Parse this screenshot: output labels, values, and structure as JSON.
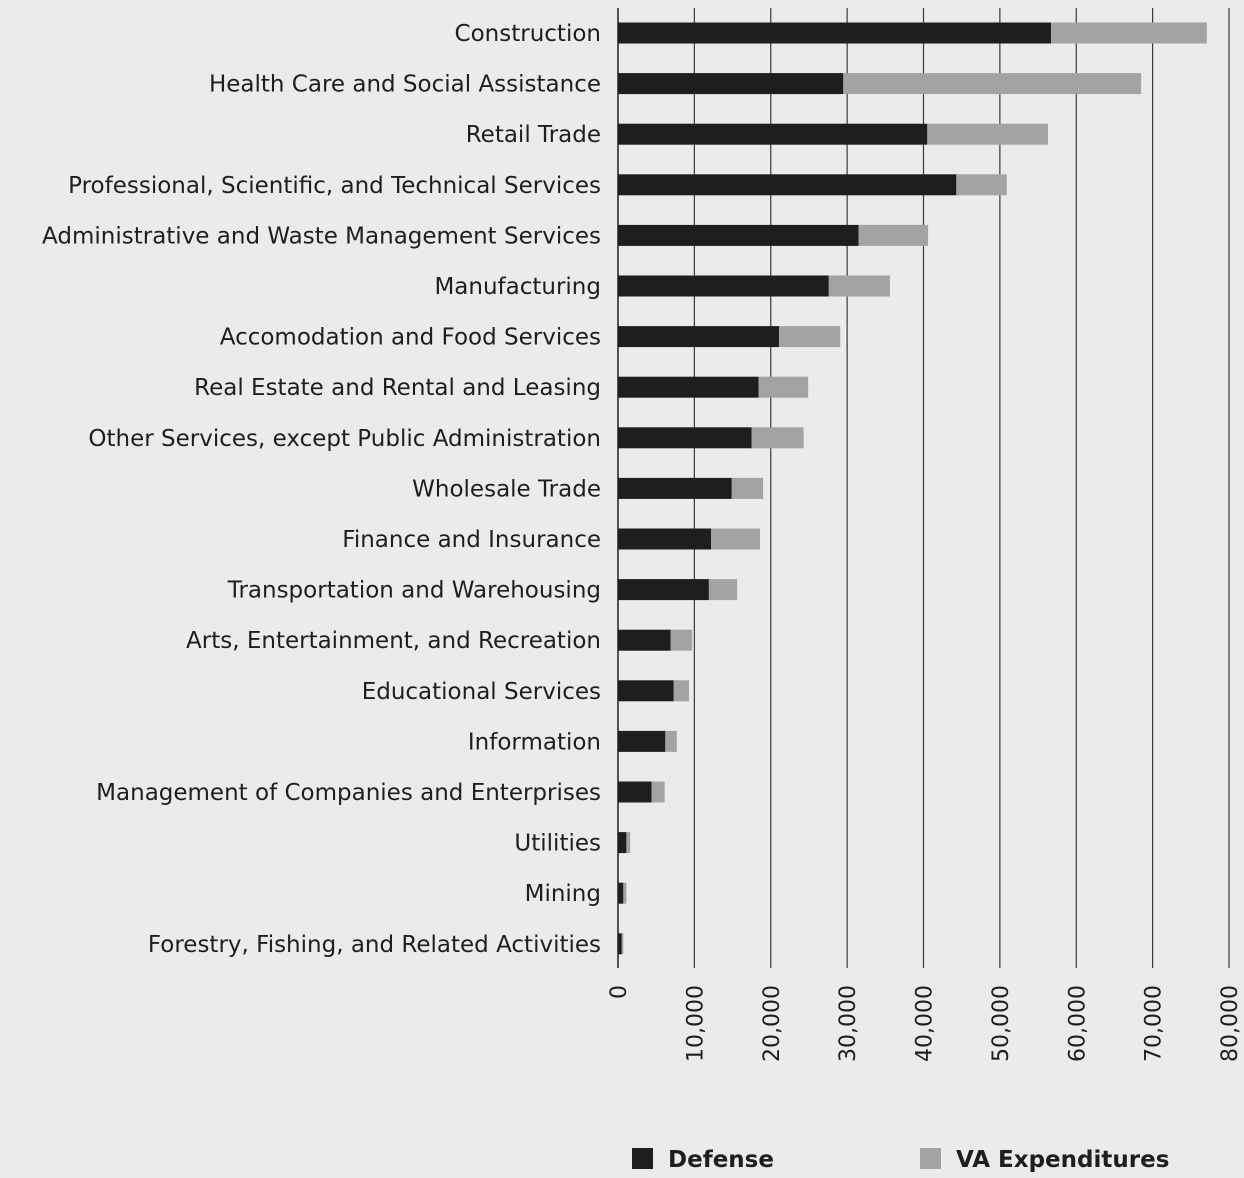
{
  "chart_data": {
    "type": "bar",
    "orientation": "horizontal",
    "stacked": true,
    "categories": [
      "Construction",
      "Health Care and Social Assistance",
      "Retail Trade",
      "Professional, Scientific, and Technical Services",
      "Administrative and Waste Management Services",
      "Manufacturing",
      "Accomodation and Food Services",
      "Real Estate and Rental and Leasing",
      "Other Services, except Public Administration",
      "Wholesale Trade",
      "Finance and Insurance",
      "Transportation and Warehousing",
      "Arts, Entertainment, and Recreation",
      "Educational Services",
      "Information",
      "Management of Companies and Enterprises",
      "Utilities",
      "Mining",
      "Forestry, Fishing, and Related Activities"
    ],
    "series": [
      {
        "name": "Defense",
        "color": "#1e1e1e",
        "values": [
          56700,
          29500,
          40500,
          44300,
          31500,
          27600,
          21100,
          18400,
          17500,
          14900,
          12200,
          11900,
          6900,
          7300,
          6200,
          4400,
          1100,
          700,
          500
        ]
      },
      {
        "name": "VA Expenditures",
        "color": "#a3a3a3",
        "values": [
          20400,
          39000,
          15800,
          6600,
          9100,
          8000,
          8000,
          6500,
          6800,
          4100,
          6400,
          3700,
          2800,
          2000,
          1500,
          1700,
          500,
          400,
          200
        ]
      }
    ],
    "xlim": [
      0,
      80000
    ],
    "xticks": [
      0,
      10000,
      20000,
      30000,
      40000,
      50000,
      60000,
      70000,
      80000
    ],
    "tick_labels": [
      "0",
      "10,000",
      "20,000",
      "30,000",
      "40,000",
      "50,000",
      "60,000",
      "70,000",
      "80,000"
    ],
    "grid": true,
    "legend_position": "bottom",
    "title": "",
    "xlabel": "",
    "ylabel": ""
  }
}
